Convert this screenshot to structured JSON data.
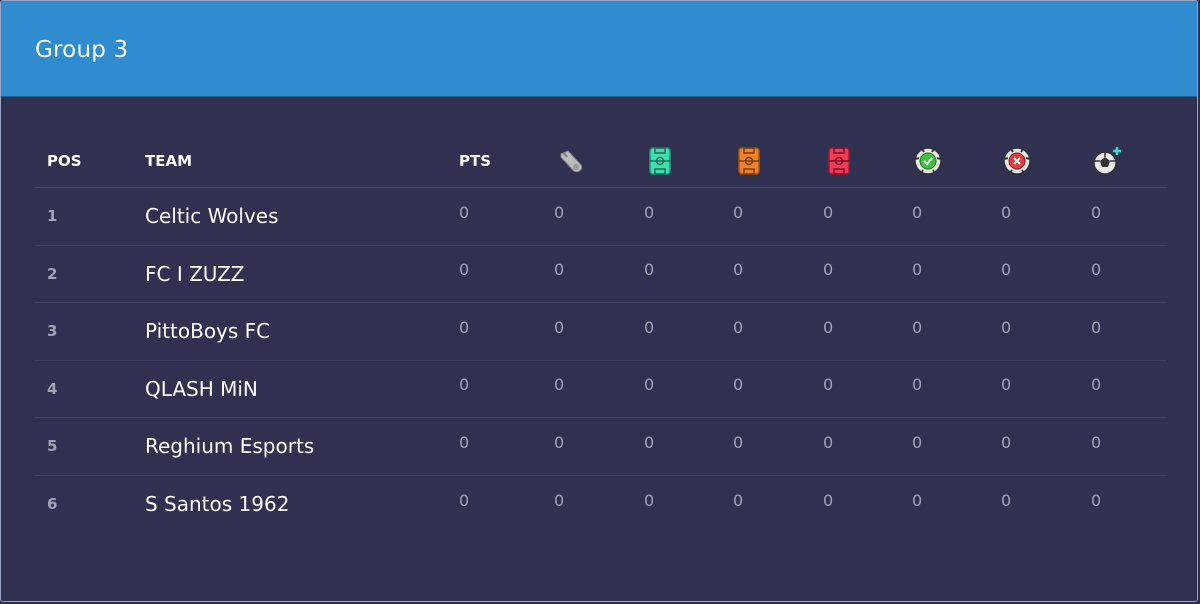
{
  "group": {
    "title": "Group 3"
  },
  "columns": {
    "pos": "POS",
    "team": "TEAM",
    "pts": "PTS",
    "icons": [
      {
        "name": "whistle-icon",
        "color": "#c9c9c9"
      },
      {
        "name": "pitch-win-icon",
        "color": "#3fe0b0"
      },
      {
        "name": "pitch-draw-icon",
        "color": "#f0822a"
      },
      {
        "name": "pitch-loss-icon",
        "color": "#f03c5a"
      },
      {
        "name": "goals-for-icon",
        "color": "#3cc43c"
      },
      {
        "name": "goals-against-icon",
        "color": "#e03c3c"
      },
      {
        "name": "goal-difference-icon",
        "color": "#3cd8c8"
      }
    ]
  },
  "rows": [
    {
      "pos": "1",
      "team": "Celtic Wolves",
      "stats": [
        "0",
        "0",
        "0",
        "0",
        "0",
        "0",
        "0",
        "0"
      ]
    },
    {
      "pos": "2",
      "team": "FC I ZUZZ",
      "stats": [
        "0",
        "0",
        "0",
        "0",
        "0",
        "0",
        "0",
        "0"
      ]
    },
    {
      "pos": "3",
      "team": "PittoBoys FC",
      "stats": [
        "0",
        "0",
        "0",
        "0",
        "0",
        "0",
        "0",
        "0"
      ]
    },
    {
      "pos": "4",
      "team": "QLASH MiN",
      "stats": [
        "0",
        "0",
        "0",
        "0",
        "0",
        "0",
        "0",
        "0"
      ]
    },
    {
      "pos": "5",
      "team": "Reghium Esports",
      "stats": [
        "0",
        "0",
        "0",
        "0",
        "0",
        "0",
        "0",
        "0"
      ]
    },
    {
      "pos": "6",
      "team": "S Santos 1962",
      "stats": [
        "0",
        "0",
        "0",
        "0",
        "0",
        "0",
        "0",
        "0"
      ]
    }
  ]
}
